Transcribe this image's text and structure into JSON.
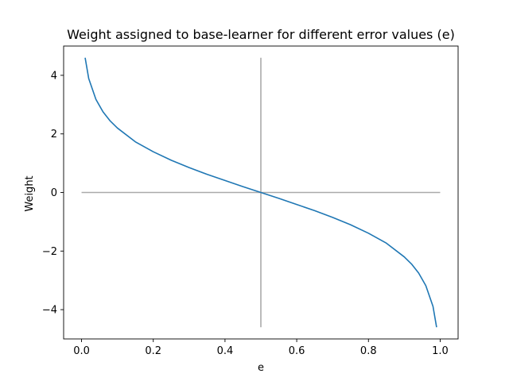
{
  "chart_data": {
    "type": "line",
    "title": "Weight assigned to base-learner for different error values (e)",
    "xlabel": "e",
    "ylabel": "Weight",
    "xlim": [
      -0.05,
      1.05
    ],
    "ylim": [
      -5.0,
      5.0
    ],
    "xticks": [
      "0.0",
      "0.2",
      "0.4",
      "0.6",
      "0.8",
      "1.0"
    ],
    "yticks": [
      "−4",
      "−2",
      "0",
      "2",
      "4"
    ],
    "grid": false,
    "series": [
      {
        "color": "#1f77b4",
        "x": [
          0.01,
          0.02,
          0.04,
          0.06,
          0.08,
          0.1,
          0.15,
          0.2,
          0.25,
          0.3,
          0.35,
          0.4,
          0.45,
          0.5,
          0.55,
          0.6,
          0.65,
          0.7,
          0.75,
          0.8,
          0.85,
          0.9,
          0.92,
          0.94,
          0.96,
          0.98,
          0.99
        ],
        "y": [
          4.6,
          3.89,
          3.18,
          2.75,
          2.44,
          2.2,
          1.73,
          1.39,
          1.1,
          0.85,
          0.62,
          0.41,
          0.2,
          0.0,
          -0.2,
          -0.41,
          -0.62,
          -0.85,
          -1.1,
          -1.39,
          -1.73,
          -2.2,
          -2.44,
          -2.75,
          -3.18,
          -3.89,
          -4.6
        ]
      }
    ],
    "reference_lines": [
      {
        "color": "#aaaaaa",
        "x": [
          0.0,
          1.0
        ],
        "y": [
          0.0,
          0.0
        ]
      },
      {
        "color": "#aaaaaa",
        "x": [
          0.5,
          0.5
        ],
        "y": [
          -4.6,
          4.6
        ]
      }
    ]
  }
}
